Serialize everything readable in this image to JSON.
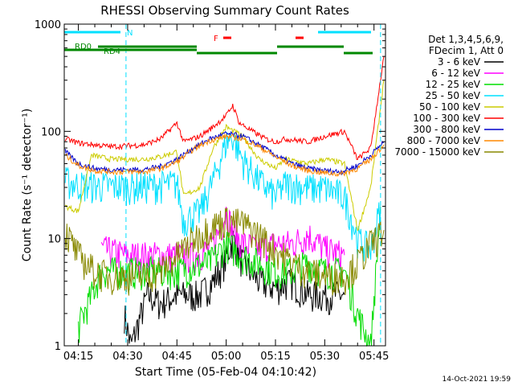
{
  "chart_data": {
    "type": "line",
    "title": "RHESSI Observing Summary Count Rates",
    "xlabel": "Start Time (05-Feb-04 04:10:42)",
    "ylabel": "Count Rate (s⁻¹ detector⁻¹)",
    "y_scale": "log",
    "ylim": [
      1,
      1000
    ],
    "xlim": [
      "04:10:42",
      "05:48:30"
    ],
    "x_ticks": [
      "04:15",
      "04:30",
      "04:45",
      "05:00",
      "05:15",
      "05:30",
      "05:45"
    ],
    "y_ticks": [
      "1",
      "10",
      "100",
      "1000"
    ],
    "timestamp": "14-Oct-2021 19:59",
    "legend_header": [
      "Det 1,3,4,5,6,9,",
      "FDecim 1, Att 0"
    ],
    "legend_position": "right",
    "annotations": [
      {
        "text": "N",
        "color": "#00e0ff"
      },
      {
        "text": "F",
        "color": "#ff0000"
      },
      {
        "text": "RD0",
        "color": "#008800"
      },
      {
        "text": "RD4",
        "color": "#008800"
      }
    ],
    "night_boundaries": [
      "04:29:30",
      "05:47:00"
    ],
    "series": [
      {
        "name": "3 - 6 keV",
        "color": "#000000",
        "x": [
          "04:29",
          "04:31",
          "04:36",
          "04:40",
          "04:45",
          "04:52",
          "04:56",
          "05:00",
          "05:02",
          "05:05",
          "05:10",
          "05:15",
          "05:20",
          "05:25",
          "05:30",
          "05:33",
          "05:36"
        ],
        "values": [
          2.0,
          1.0,
          3.0,
          2.5,
          3.0,
          3.0,
          4.0,
          6.5,
          10.0,
          6.0,
          4.0,
          3.5,
          4.0,
          3.0,
          3.0,
          3.0,
          3.0
        ]
      },
      {
        "name": "6 - 12 keV",
        "color": "#ff00ff",
        "x": [
          "04:22",
          "04:30",
          "04:36",
          "04:40",
          "04:45",
          "04:50",
          "04:55",
          "04:58",
          "05:00",
          "05:02",
          "05:05",
          "05:10",
          "05:15",
          "05:20",
          "05:25",
          "05:30",
          "05:36"
        ],
        "values": [
          8.0,
          7.0,
          7.0,
          7.0,
          7.0,
          7.0,
          8.0,
          12.0,
          18.0,
          12.0,
          9.0,
          8.0,
          9.0,
          9.0,
          11.0,
          8.0,
          7.0
        ]
      },
      {
        "name": "12 - 25 keV",
        "color": "#00dd00",
        "x": [
          "04:15",
          "04:22",
          "04:30",
          "04:40",
          "04:45",
          "04:50",
          "04:55",
          "05:00",
          "05:05",
          "05:10",
          "05:15",
          "05:20",
          "05:25",
          "05:30",
          "05:36",
          "05:40",
          "05:44",
          "05:47"
        ],
        "values": [
          1.5,
          5.0,
          5.0,
          5.0,
          5.0,
          5.5,
          6.0,
          9.0,
          7.0,
          6.0,
          5.0,
          5.0,
          6.0,
          5.0,
          5.0,
          2.0,
          1.0,
          20.0
        ]
      },
      {
        "name": "25 - 50 keV",
        "color": "#00e0ff",
        "x": [
          "04:11",
          "04:15",
          "04:25",
          "04:35",
          "04:40",
          "04:45",
          "04:47",
          "04:52",
          "04:56",
          "05:00",
          "05:02",
          "05:05",
          "05:10",
          "05:15",
          "05:18",
          "05:25",
          "05:30",
          "05:36",
          "05:40",
          "05:44",
          "05:47"
        ],
        "values": [
          35.0,
          32.0,
          31.0,
          31.0,
          32.0,
          33.0,
          15.0,
          18.0,
          35.0,
          80.0,
          90.0,
          55.0,
          35.0,
          25.0,
          33.0,
          30.0,
          30.0,
          25.0,
          10.0,
          8.0,
          20.0
        ]
      },
      {
        "name": "50 - 100 keV",
        "color": "#cccc00",
        "x": [
          "04:11",
          "04:15",
          "04:19",
          "04:25",
          "04:35",
          "04:40",
          "04:45",
          "04:47",
          "04:52",
          "04:56",
          "05:00",
          "05:05",
          "05:10",
          "05:15",
          "05:18",
          "05:25",
          "05:30",
          "05:36",
          "05:40",
          "05:44",
          "05:48"
        ],
        "values": [
          20.0,
          18.0,
          60.0,
          55.0,
          55.0,
          58.0,
          65.0,
          25.0,
          30.0,
          70.0,
          110.0,
          90.0,
          55.0,
          45.0,
          55.0,
          50.0,
          55.0,
          50.0,
          12.0,
          30.0,
          300.0
        ]
      },
      {
        "name": "100 - 300 keV",
        "color": "#ff0000",
        "x": [
          "04:11",
          "04:15",
          "04:25",
          "04:35",
          "04:40",
          "04:45",
          "04:47",
          "04:52",
          "04:56",
          "05:00",
          "05:02",
          "05:04",
          "05:08",
          "05:12",
          "05:15",
          "05:18",
          "05:25",
          "05:30",
          "05:36",
          "05:40",
          "05:44",
          "05:48"
        ],
        "values": [
          85.0,
          78.0,
          72.0,
          75.0,
          85.0,
          120.0,
          80.0,
          90.0,
          110.0,
          140.0,
          175.0,
          120.0,
          100.0,
          85.0,
          80.0,
          85.0,
          80.0,
          90.0,
          100.0,
          55.0,
          70.0,
          500.0
        ]
      },
      {
        "name": "300 - 800 keV",
        "color": "#0000cc",
        "x": [
          "04:11",
          "04:15",
          "04:20",
          "04:25",
          "04:35",
          "04:40",
          "04:45",
          "04:50",
          "04:55",
          "05:00",
          "05:05",
          "05:10",
          "05:15",
          "05:20",
          "05:25",
          "05:30",
          "05:35",
          "05:40",
          "05:44",
          "05:48"
        ],
        "values": [
          65.0,
          50.0,
          45.0,
          44.0,
          44.0,
          47.0,
          55.0,
          70.0,
          85.0,
          95.0,
          90.0,
          75.0,
          60.0,
          50.0,
          45.0,
          43.0,
          42.0,
          48.0,
          60.0,
          80.0
        ]
      },
      {
        "name": "800 - 7000 keV",
        "color": "#ff8800",
        "x": [
          "04:11",
          "04:15",
          "04:20",
          "04:25",
          "04:35",
          "04:40",
          "04:45",
          "04:50",
          "04:55",
          "05:00",
          "05:05",
          "05:10",
          "05:15",
          "05:20",
          "05:25",
          "05:30",
          "05:35",
          "05:40",
          "05:44",
          "05:48"
        ],
        "values": [
          60.0,
          48.0,
          43.0,
          42.0,
          42.0,
          45.0,
          52.0,
          68.0,
          82.0,
          90.0,
          85.0,
          72.0,
          58.0,
          48.0,
          43.0,
          41.0,
          40.0,
          45.0,
          55.0,
          75.0
        ]
      },
      {
        "name": "7000 - 15000 keV",
        "color": "#888800",
        "x": [
          "04:11",
          "04:15",
          "04:20",
          "04:25",
          "04:35",
          "04:40",
          "04:45",
          "04:50",
          "04:55",
          "05:00",
          "05:05",
          "05:10",
          "05:15",
          "05:20",
          "05:25",
          "05:30",
          "05:36",
          "05:40",
          "05:44",
          "05:48"
        ],
        "values": [
          12.0,
          7.0,
          5.0,
          4.5,
          4.5,
          5.0,
          7.0,
          10.0,
          13.0,
          15.0,
          14.0,
          11.0,
          8.0,
          6.0,
          5.0,
          4.5,
          4.5,
          6.0,
          9.0,
          12.0
        ]
      }
    ]
  }
}
